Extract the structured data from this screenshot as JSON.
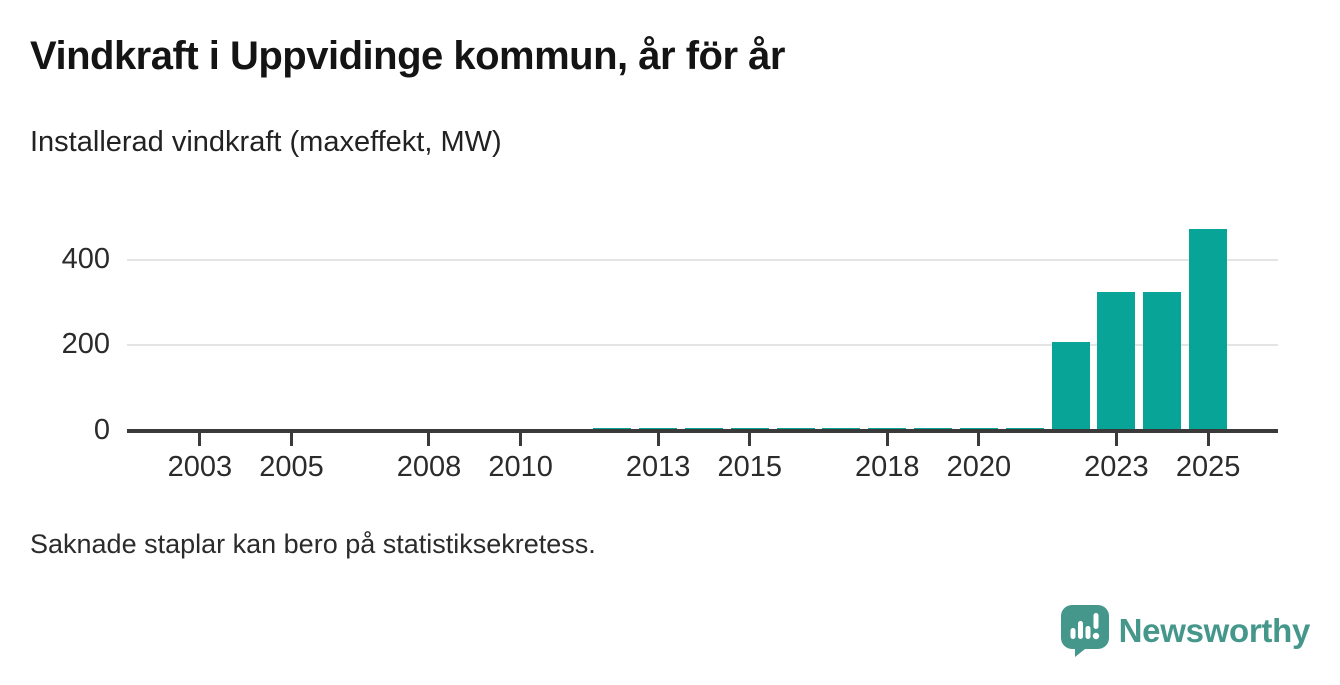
{
  "title": "Vindkraft i Uppvidinge kommun, år för år",
  "subtitle": "Installerad vindkraft (maxeffekt, MW)",
  "footnote": "Saknade staplar kan bero på statistiksekretess.",
  "branding": {
    "name": "Newsworthy",
    "icon": "newsworthy-speech-bubble-chart-icon",
    "color": "#46978b"
  },
  "colors": {
    "bar": "#08a498",
    "axis": "#3a3a3a",
    "grid": "#e4e4e4",
    "text": "#2b2b2b"
  },
  "chart_data": {
    "type": "bar",
    "title": "Vindkraft i Uppvidinge kommun, år för år",
    "subtitle": "Installerad vindkraft (maxeffekt, MW)",
    "xlabel": "",
    "ylabel": "Installerad vindkraft (maxeffekt, MW)",
    "x": [
      2002,
      2003,
      2004,
      2005,
      2006,
      2007,
      2008,
      2009,
      2010,
      2011,
      2012,
      2013,
      2014,
      2015,
      2016,
      2017,
      2018,
      2019,
      2020,
      2021,
      2022,
      2023,
      2024,
      2025
    ],
    "values": [
      null,
      null,
      null,
      null,
      null,
      null,
      null,
      null,
      null,
      null,
      7,
      7,
      7,
      7,
      7,
      7,
      7,
      7,
      7,
      7,
      207,
      324,
      324,
      473
    ],
    "x_tick_labels": [
      "2003",
      "2005",
      "2008",
      "2010",
      "2013",
      "2015",
      "2018",
      "2020",
      "2023",
      "2025"
    ],
    "y_ticks": [
      0,
      200,
      400
    ],
    "ylim": [
      0,
      500
    ],
    "grid": "horizontal",
    "legend": "none",
    "missing_data_note": "Saknade staplar kan bero på statistiksekretess."
  }
}
